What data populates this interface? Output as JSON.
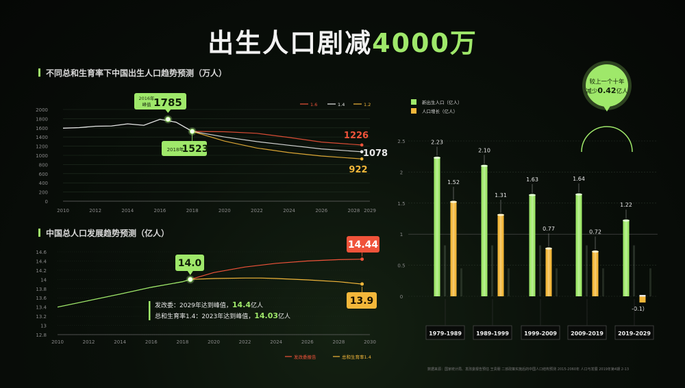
{
  "title": {
    "main": "出生人口剧减",
    "accent": "4000万"
  },
  "colors": {
    "green": "#9fe86a",
    "orange": "#f3b73a",
    "red": "#f0533a",
    "white": "#e8e8e8",
    "grey": "#bdbdbd"
  },
  "birth_chart": {
    "section_title": "不同总和生育率下中国出生人口趋势预测（万人）",
    "legend": [
      "1.6",
      "1.4",
      "1.2"
    ],
    "peak_label_small": "2016年\n峰值",
    "peak_value": "1785",
    "point_2018_label": "2018年",
    "point_2018_value": "1523",
    "end_1_6": "1226",
    "end_1_4": "1078",
    "end_1_2": "922"
  },
  "pop_chart": {
    "section_title": "中国总人口发展趋势预测（亿人）",
    "point_label": "14.0",
    "end_red": "14.44",
    "end_orange": "13.9",
    "note1_pre": "发改委：2029年达到峰值，",
    "note1_val": "14.4",
    "note1_unit": "亿人",
    "note2_pre": "总和生育率1.4：2023年达到峰值，",
    "note2_val": "14.03",
    "note2_unit": "亿人",
    "legend": [
      "发改委报告",
      "总和生育率1.4"
    ]
  },
  "bar_chart": {
    "legend": [
      "新出生人口（亿人）",
      "人口增长（亿人）"
    ],
    "bubble_line1": "较上一个十年",
    "bubble_line2_pre": "减少",
    "bubble_line2_val": "0.42",
    "bubble_line2_unit": "亿人"
  },
  "source_text": "数据来源：国家统计局、发改委报告预估  王贵朋  二孩政策实施后的中国人口结构预测 2015-2060年 人口与发展 2019年第4期 2-13",
  "chart_data": [
    {
      "type": "line",
      "title": "不同总和生育率下中国出生人口趋势预测（万人）",
      "xlim": [
        2010,
        2029
      ],
      "ylim": [
        0,
        2000
      ],
      "yticks": [
        0,
        200,
        400,
        600,
        800,
        1000,
        1200,
        1400,
        1600,
        1800,
        2000
      ],
      "xticks": [
        2010,
        2012,
        2014,
        2016,
        2018,
        2020,
        2022,
        2024,
        2026,
        2028,
        2029
      ],
      "history": {
        "x": [
          2010,
          2011,
          2012,
          2013,
          2014,
          2015,
          2016,
          2017,
          2018
        ],
        "y": [
          1592,
          1604,
          1635,
          1640,
          1687,
          1655,
          1785,
          1723,
          1523
        ]
      },
      "series": [
        {
          "name": "1.6",
          "x": [
            2018,
            2020,
            2022,
            2024,
            2026,
            2028.5
          ],
          "y": [
            1523,
            1515,
            1480,
            1390,
            1290,
            1226
          ]
        },
        {
          "name": "1.4",
          "x": [
            2018,
            2020,
            2022,
            2024,
            2026,
            2028.5
          ],
          "y": [
            1523,
            1400,
            1300,
            1220,
            1140,
            1078
          ]
        },
        {
          "name": "1.2",
          "x": [
            2018,
            2020,
            2022,
            2024,
            2026,
            2028.5
          ],
          "y": [
            1523,
            1310,
            1160,
            1060,
            985,
            922
          ]
        }
      ]
    },
    {
      "type": "line",
      "title": "中国总人口发展趋势预测（亿人）",
      "xlim": [
        2010,
        2030
      ],
      "ylim": [
        12.8,
        14.6
      ],
      "yticks": [
        12.8,
        13,
        13.2,
        13.4,
        13.6,
        13.8,
        14,
        14.2,
        14.4,
        14.6
      ],
      "xticks": [
        2010,
        2012,
        2014,
        2016,
        2018,
        2020,
        2022,
        2024,
        2026,
        2028,
        2030
      ],
      "history": {
        "x": [
          2010,
          2012,
          2014,
          2016,
          2018,
          2018.5
        ],
        "y": [
          13.4,
          13.54,
          13.68,
          13.83,
          13.95,
          14.0
        ]
      },
      "series": [
        {
          "name": "发改委报告",
          "x": [
            2018.5,
            2020,
            2022,
            2024,
            2026,
            2028,
            2029.5
          ],
          "y": [
            14.0,
            14.15,
            14.27,
            14.35,
            14.4,
            14.43,
            14.44
          ]
        },
        {
          "name": "总和生育率1.4",
          "x": [
            2018.5,
            2020,
            2022,
            2023,
            2024,
            2026,
            2028,
            2029.5
          ],
          "y": [
            14.0,
            14.02,
            14.03,
            14.03,
            14.02,
            13.99,
            13.95,
            13.9
          ]
        }
      ]
    },
    {
      "type": "bar",
      "categories": [
        "1979-1989",
        "1989-1999",
        "1999-2009",
        "2009-2019",
        "2019-2029"
      ],
      "ylim": [
        -0.2,
        2.5
      ],
      "yticks": [
        0,
        0.5,
        1,
        1.5,
        2,
        2.5
      ],
      "series": [
        {
          "name": "新出生人口（亿人）",
          "values": [
            2.23,
            2.1,
            1.63,
            1.64,
            1.22
          ],
          "labels": [
            "2.23",
            "2.10",
            "1.63",
            "1.64",
            "1.22"
          ]
        },
        {
          "name": "人口增长（亿人）",
          "values": [
            1.52,
            1.31,
            0.77,
            0.72,
            -0.1
          ],
          "labels": [
            "1.52",
            "1.31",
            "0.77",
            "0.72",
            "-0.1）"
          ]
        }
      ]
    }
  ]
}
